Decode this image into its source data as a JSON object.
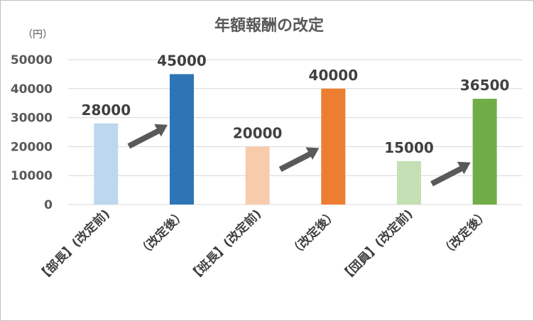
{
  "chart_data": {
    "type": "bar",
    "title": "年額報酬の改定",
    "unit_label": "（円）",
    "categories": [
      "【部長】(改定前)",
      "（改定後）",
      "【班長】(改定前)",
      "（改定後）",
      "【団員】(改定前)",
      "（改定後）"
    ],
    "values": [
      28000,
      45000,
      20000,
      40000,
      15000,
      36500
    ],
    "data_labels": [
      "28000",
      "45000",
      "20000",
      "40000",
      "15000",
      "36500"
    ],
    "bar_colors": [
      "#bdd7ee",
      "#2e75b6",
      "#f8cbad",
      "#ed7d31",
      "#c5e0b4",
      "#70ad47"
    ],
    "ylim": [
      0,
      50000
    ],
    "yticks": [
      0,
      10000,
      20000,
      30000,
      40000,
      50000
    ],
    "ytick_labels": [
      "0",
      "10000",
      "20000",
      "30000",
      "40000",
      "50000"
    ],
    "grid": true,
    "legend": "none",
    "annotations": [
      "arrow-up-right",
      "arrow-up-right",
      "arrow-up-right"
    ],
    "arrow_color": "#595959"
  }
}
